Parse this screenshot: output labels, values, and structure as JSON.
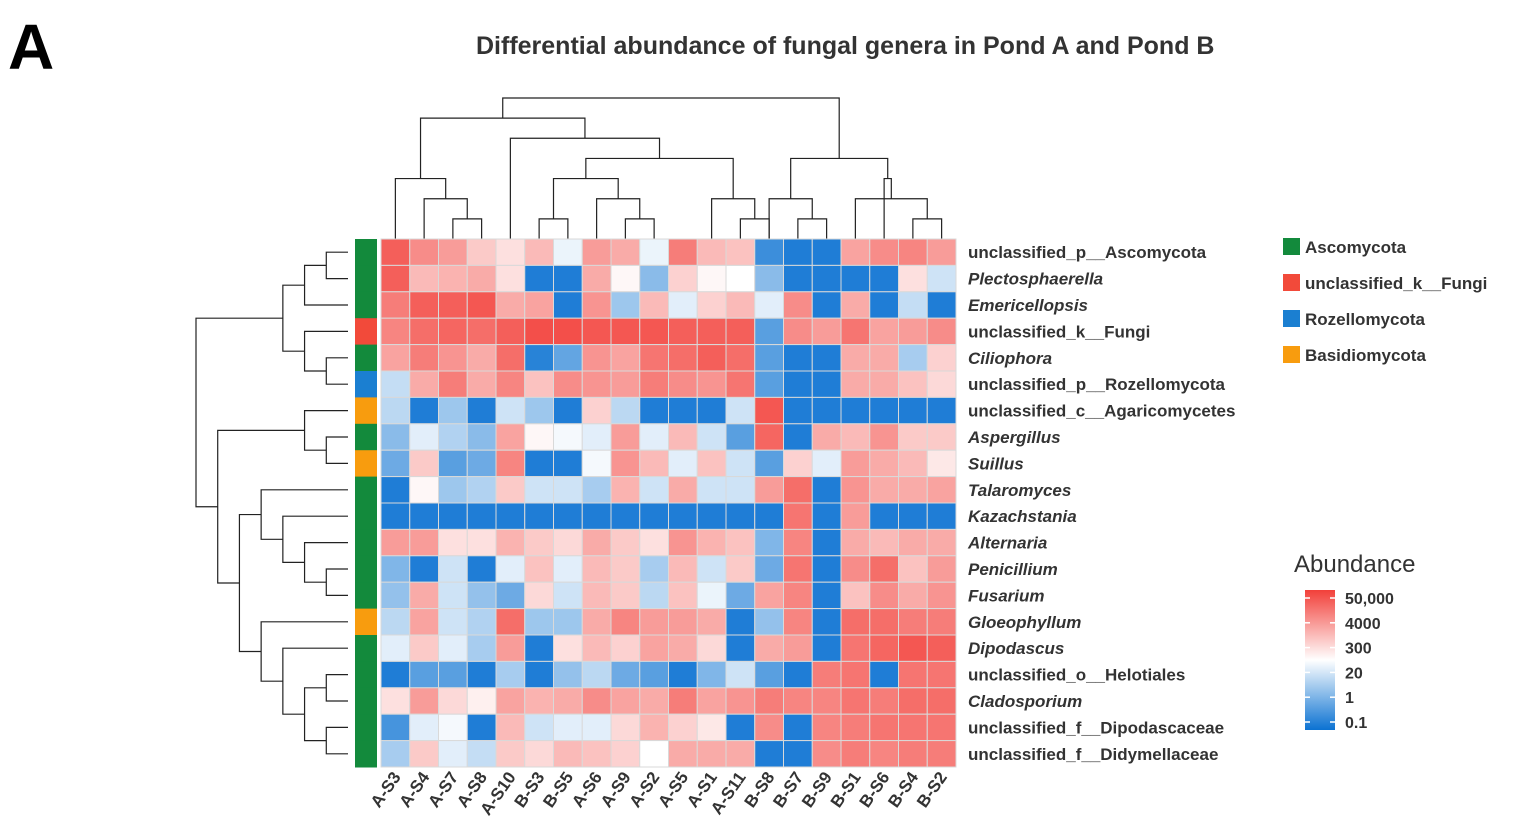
{
  "panel_label": "A",
  "chart_data": {
    "type": "heatmap",
    "title": "Differential abundance of fungal genera in Pond A and Pond B",
    "columns": [
      "A-S3",
      "A-S4",
      "A-S7",
      "A-S8",
      "A-S10",
      "B-S3",
      "B-S5",
      "A-S6",
      "A-S9",
      "A-S2",
      "A-S5",
      "A-S1",
      "A-S11",
      "B-S8",
      "B-S7",
      "B-S9",
      "B-S1",
      "B-S6",
      "B-S4",
      "B-S2"
    ],
    "rows": [
      {
        "name": "unclassified_p__Ascomycota",
        "italic": false,
        "phylum": "Ascomycota"
      },
      {
        "name": "Plectosphaerella",
        "italic": true,
        "phylum": "Ascomycota"
      },
      {
        "name": "Emericellopsis",
        "italic": true,
        "phylum": "Ascomycota"
      },
      {
        "name": "unclassified_k__Fungi",
        "italic": false,
        "phylum": "unclassified_k__Fungi"
      },
      {
        "name": "Ciliophora",
        "italic": true,
        "phylum": "Ascomycota"
      },
      {
        "name": "unclassified_p__Rozellomycota",
        "italic": false,
        "phylum": "Rozellomycota"
      },
      {
        "name": "unclassified_c__Agaricomycetes",
        "italic": false,
        "phylum": "Basidiomycota"
      },
      {
        "name": "Aspergillus",
        "italic": true,
        "phylum": "Ascomycota"
      },
      {
        "name": "Suillus",
        "italic": true,
        "phylum": "Basidiomycota"
      },
      {
        "name": "Talaromyces",
        "italic": true,
        "phylum": "Ascomycota"
      },
      {
        "name": "Kazachstania",
        "italic": true,
        "phylum": "Ascomycota"
      },
      {
        "name": "Alternaria",
        "italic": true,
        "phylum": "Ascomycota"
      },
      {
        "name": "Penicillium",
        "italic": true,
        "phylum": "Ascomycota"
      },
      {
        "name": "Fusarium",
        "italic": true,
        "phylum": "Ascomycota"
      },
      {
        "name": "Gloeophyllum",
        "italic": true,
        "phylum": "Basidiomycota"
      },
      {
        "name": "Dipodascus",
        "italic": true,
        "phylum": "Ascomycota"
      },
      {
        "name": "unclassified_o__Helotiales",
        "italic": false,
        "phylum": "Ascomycota"
      },
      {
        "name": "Cladosporium",
        "italic": true,
        "phylum": "Ascomycota"
      },
      {
        "name": "unclassified_f__Dipodascaceae",
        "italic": false,
        "phylum": "Ascomycota"
      },
      {
        "name": "unclassified_f__Didymellaceae",
        "italic": false,
        "phylum": "Ascomycota"
      }
    ],
    "values_log_level_scale": "0=0.1, 1=1, 2=20, 3=300, 4=4000, 5=50,000",
    "values": [
      [
        4.6,
        4.0,
        3.8,
        3.2,
        2.9,
        3.4,
        2.3,
        3.8,
        3.6,
        2.3,
        4.2,
        3.4,
        3.3,
        0.5,
        0.2,
        0.2,
        3.7,
        4.0,
        4.1,
        3.8
      ],
      [
        4.6,
        3.4,
        3.5,
        3.6,
        2.9,
        0.2,
        0.2,
        3.6,
        2.6,
        1.3,
        3.1,
        2.6,
        2.5,
        1.3,
        0.2,
        0.2,
        0.2,
        0.2,
        2.9,
        2.0
      ],
      [
        4.2,
        4.6,
        4.6,
        4.7,
        3.6,
        3.7,
        0.2,
        3.9,
        1.5,
        3.4,
        2.2,
        3.1,
        3.4,
        2.2,
        4.0,
        0.2,
        3.6,
        0.2,
        1.9,
        0.2
      ],
      [
        4.1,
        4.4,
        4.5,
        4.4,
        4.6,
        4.8,
        4.8,
        4.7,
        4.7,
        4.7,
        4.6,
        4.6,
        4.6,
        0.8,
        4.0,
        3.8,
        4.3,
        3.7,
        3.8,
        4.0
      ],
      [
        3.7,
        4.2,
        3.9,
        3.6,
        4.4,
        0.3,
        0.9,
        3.9,
        3.7,
        4.3,
        4.4,
        4.6,
        4.4,
        0.8,
        0.2,
        0.2,
        3.6,
        3.6,
        1.6,
        3.1
      ],
      [
        1.9,
        3.6,
        4.2,
        3.6,
        4.1,
        3.3,
        4.0,
        3.9,
        3.8,
        4.2,
        4.0,
        3.9,
        4.3,
        0.8,
        0.2,
        0.2,
        3.6,
        3.6,
        3.3,
        3.0
      ],
      [
        1.8,
        0.2,
        1.5,
        0.2,
        2.0,
        1.5,
        0.2,
        3.1,
        1.8,
        0.2,
        0.2,
        0.2,
        2.0,
        4.7,
        0.2,
        0.2,
        0.2,
        0.2,
        0.2,
        0.2
      ],
      [
        1.3,
        2.2,
        1.7,
        1.3,
        3.7,
        2.6,
        2.4,
        2.2,
        3.8,
        2.2,
        3.4,
        2.0,
        0.8,
        4.5,
        0.2,
        3.6,
        3.4,
        3.9,
        3.2,
        3.2
      ],
      [
        1.0,
        3.2,
        0.8,
        1.0,
        4.1,
        0.2,
        0.2,
        2.4,
        3.9,
        3.4,
        2.2,
        3.3,
        2.0,
        0.8,
        3.1,
        2.2,
        3.8,
        3.6,
        3.4,
        2.8
      ],
      [
        0.2,
        2.6,
        1.5,
        1.7,
        3.2,
        2.0,
        2.0,
        1.6,
        3.5,
        2.0,
        3.6,
        2.0,
        2.0,
        3.8,
        4.4,
        0.2,
        3.9,
        3.6,
        3.6,
        3.7
      ],
      [
        0.2,
        0.2,
        0.2,
        0.2,
        0.2,
        0.2,
        0.2,
        0.2,
        0.2,
        0.2,
        0.2,
        0.2,
        0.2,
        0.2,
        4.3,
        0.2,
        3.8,
        0.2,
        0.2,
        0.2
      ],
      [
        3.8,
        3.8,
        2.9,
        2.9,
        3.5,
        3.2,
        3.0,
        3.6,
        3.2,
        2.9,
        3.9,
        3.5,
        3.3,
        1.2,
        4.1,
        0.2,
        3.6,
        3.4,
        3.6,
        3.6
      ],
      [
        1.2,
        0.2,
        2.0,
        0.2,
        2.2,
        3.3,
        2.2,
        3.4,
        3.2,
        1.6,
        3.4,
        2.0,
        3.2,
        1.0,
        4.3,
        0.2,
        4.0,
        4.4,
        3.3,
        3.8
      ],
      [
        1.4,
        3.6,
        2.0,
        1.4,
        1.0,
        3.0,
        2.0,
        3.4,
        3.2,
        1.8,
        3.3,
        2.3,
        1.0,
        3.7,
        4.1,
        0.2,
        3.3,
        4.0,
        3.6,
        3.9
      ],
      [
        1.8,
        3.7,
        2.0,
        1.7,
        4.4,
        1.5,
        1.5,
        3.6,
        4.1,
        3.8,
        3.8,
        3.6,
        0.2,
        1.4,
        4.1,
        0.2,
        4.4,
        4.4,
        4.2,
        4.2
      ],
      [
        2.2,
        3.2,
        2.2,
        1.6,
        3.8,
        0.2,
        2.9,
        3.4,
        3.1,
        3.7,
        3.6,
        3.0,
        0.2,
        3.6,
        3.8,
        0.2,
        4.3,
        4.5,
        4.7,
        4.6
      ],
      [
        0.2,
        0.8,
        0.8,
        0.2,
        1.6,
        0.2,
        1.4,
        1.8,
        1.0,
        0.8,
        0.2,
        1.2,
        2.0,
        0.8,
        0.2,
        4.2,
        4.3,
        0.2,
        4.3,
        4.3
      ],
      [
        2.9,
        3.8,
        3.0,
        2.7,
        3.7,
        3.5,
        3.6,
        4.0,
        3.7,
        3.6,
        4.2,
        3.7,
        3.9,
        4.2,
        4.1,
        4.1,
        4.3,
        4.2,
        4.4,
        4.4
      ],
      [
        0.6,
        2.2,
        2.4,
        0.2,
        3.4,
        2.0,
        2.2,
        2.2,
        3.0,
        3.5,
        3.1,
        2.8,
        0.2,
        4.0,
        0.2,
        4.1,
        4.2,
        4.3,
        4.3,
        4.3
      ],
      [
        1.6,
        3.2,
        2.2,
        1.9,
        3.2,
        3.0,
        3.4,
        3.3,
        3.1,
        2.5,
        3.6,
        3.6,
        3.6,
        0.2,
        0.2,
        4.0,
        4.2,
        4.1,
        4.2,
        4.2
      ]
    ],
    "legend_annotation": [
      {
        "label": "Ascomycota",
        "color": "#138a3c"
      },
      {
        "label": "unclassified_k__Fungi",
        "color": "#f24a3a"
      },
      {
        "label": "Rozellomycota",
        "color": "#1b7fd1"
      },
      {
        "label": "Basidiomycota",
        "color": "#f89c0e"
      }
    ],
    "colorbar": {
      "title": "Abundance",
      "ticks": [
        "50,000",
        "4000",
        "300",
        "20",
        "1",
        "0.1"
      ],
      "low_color": "#0b72d2",
      "mid_color": "#ffffff",
      "high_color": "#f2403a"
    },
    "col_dendrogram_merges": [
      [
        2,
        3
      ],
      [
        18,
        19
      ],
      [
        8,
        9
      ],
      [
        12,
        13
      ],
      [
        5,
        6
      ],
      [
        16,
        "n1"
      ],
      [
        1,
        "n0"
      ],
      [
        7,
        "n2"
      ],
      [
        17,
        "n5"
      ],
      [
        11,
        "n3"
      ],
      [
        "n4",
        "n7"
      ],
      [
        0,
        "n6"
      ],
      [
        14,
        15
      ],
      [
        "n9",
        "n10"
      ],
      [
        4,
        "n13"
      ],
      [
        "n11",
        "n14"
      ],
      [
        13,
        "n12"
      ],
      [
        "n16",
        "n8"
      ],
      [
        "n15",
        "n17"
      ]
    ],
    "row_dendrogram_merges": [
      [
        0,
        1
      ],
      [
        4,
        5
      ],
      [
        2,
        "n0"
      ],
      [
        3,
        "n1"
      ],
      [
        "n2",
        "n3"
      ],
      [
        7,
        8
      ],
      [
        6,
        "n5"
      ],
      [
        12,
        13
      ],
      [
        11,
        "n7"
      ],
      [
        10,
        "n8"
      ],
      [
        9,
        "n9"
      ],
      [
        16,
        17
      ],
      [
        18,
        19
      ],
      [
        "n11",
        "n12"
      ],
      [
        15,
        "n13"
      ],
      [
        14,
        "n14"
      ],
      [
        "n10",
        "n15"
      ],
      [
        "n6",
        "n16"
      ],
      [
        "n4",
        "n17"
      ]
    ]
  }
}
